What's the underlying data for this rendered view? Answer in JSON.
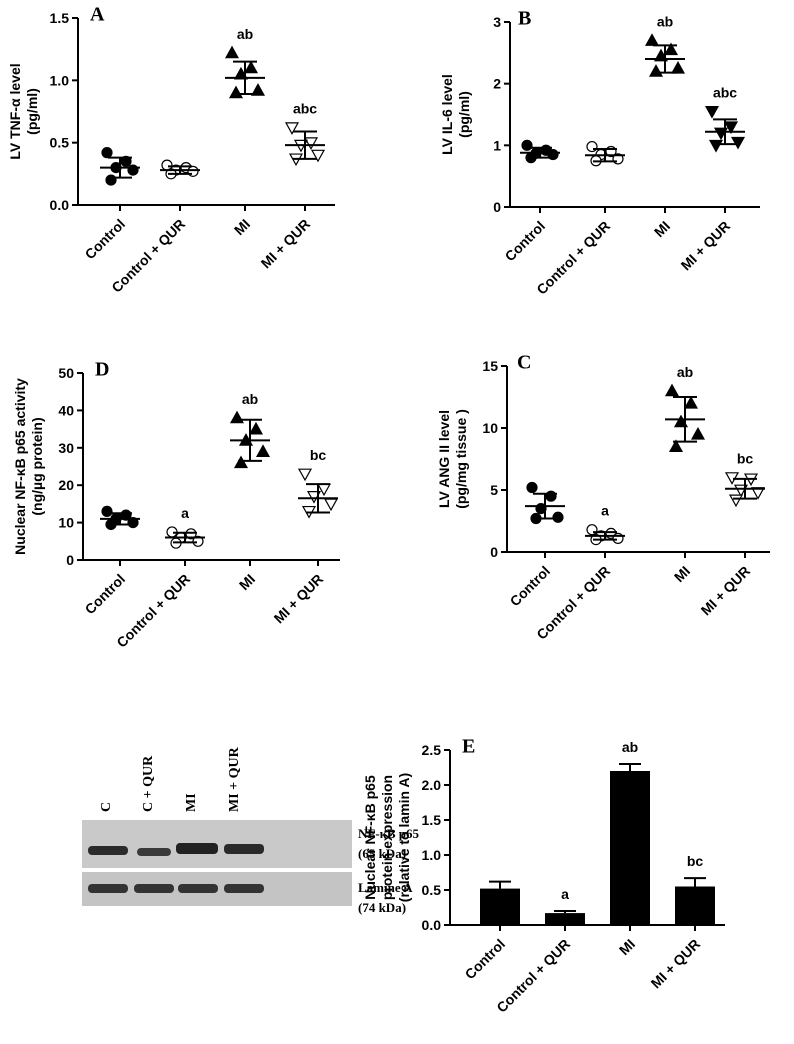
{
  "chart_data": [
    {
      "type": "dot",
      "panel": "A",
      "ylabel": [
        "LV TNF-α level",
        "(pg/ml)"
      ],
      "categories": [
        "Control",
        "Control + QUR",
        "MI",
        "MI + QUR"
      ],
      "points": [
        [
          0.42,
          0.35,
          0.3,
          0.28,
          0.2
        ],
        [
          0.32,
          0.3,
          0.28,
          0.27,
          0.25
        ],
        [
          1.22,
          1.1,
          1.05,
          0.92,
          0.9
        ],
        [
          0.62,
          0.5,
          0.48,
          0.4,
          0.37
        ]
      ],
      "means": [
        0.3,
        0.28,
        1.02,
        0.48
      ],
      "errors": [
        0.08,
        0.03,
        0.13,
        0.11
      ],
      "markers": [
        "circle-filled",
        "circle-open",
        "triangle-up-filled",
        "triangle-down-open"
      ],
      "annotations": [
        null,
        null,
        "ab",
        "abc"
      ],
      "ylim": [
        0,
        1.5
      ],
      "yticks": [
        {
          "value": 0,
          "label": "0.0"
        },
        0.5,
        {
          "value": 1,
          "label": "1.0"
        },
        1.5
      ]
    },
    {
      "type": "dot",
      "panel": "B",
      "ylabel": [
        "LV IL-6 level",
        "(pg/ml)"
      ],
      "categories": [
        "Control",
        "Control + QUR",
        "MI",
        "MI + QUR"
      ],
      "points": [
        [
          1.0,
          0.92,
          0.87,
          0.85,
          0.8
        ],
        [
          0.98,
          0.9,
          0.85,
          0.78,
          0.75
        ],
        [
          2.7,
          2.55,
          2.45,
          2.25,
          2.2
        ],
        [
          1.55,
          1.3,
          1.2,
          1.05,
          1.0
        ]
      ],
      "means": [
        0.88,
        0.84,
        2.4,
        1.22
      ],
      "errors": [
        0.08,
        0.1,
        0.22,
        0.2
      ],
      "markers": [
        "circle-filled",
        "circle-open",
        "triangle-up-filled",
        "triangle-down-filled"
      ],
      "annotations": [
        null,
        null,
        "ab",
        "abc"
      ],
      "ylim": [
        0,
        3
      ],
      "yticks": [
        0,
        1,
        2,
        3
      ]
    },
    {
      "type": "dot",
      "panel": "D",
      "ylabel": [
        "Nuclear NF-κB p65 activity",
        "(ng/µg protein)"
      ],
      "categories": [
        "Control",
        "Control + QUR",
        "MI",
        "MI + QUR"
      ],
      "points": [
        [
          13,
          12,
          11,
          10,
          9.5
        ],
        [
          7.5,
          7,
          6,
          5,
          4.5
        ],
        [
          38,
          35,
          32,
          29,
          26
        ],
        [
          23,
          19,
          17,
          15,
          13
        ]
      ],
      "means": [
        11,
        6,
        32,
        16.5
      ],
      "errors": [
        1.5,
        1.3,
        5.5,
        3.8
      ],
      "markers": [
        "circle-filled",
        "circle-open",
        "triangle-up-filled",
        "triangle-down-open"
      ],
      "annotations": [
        null,
        "a",
        "ab",
        "bc"
      ],
      "ylim": [
        0,
        50
      ],
      "yticks": [
        0,
        10,
        20,
        30,
        40,
        50
      ]
    },
    {
      "type": "dot",
      "panel": "C",
      "ylabel": [
        "LV ANG II level",
        "(pg/mg tissue )"
      ],
      "categories": [
        "Control",
        "Control + QUR",
        "MI",
        "MI + QUR"
      ],
      "points": [
        [
          5.2,
          4.5,
          3.5,
          2.8,
          2.7
        ],
        [
          1.8,
          1.5,
          1.3,
          1.1,
          1.0
        ],
        [
          13,
          12,
          10.5,
          9.5,
          8.5
        ],
        [
          6,
          5.9,
          5,
          4.8,
          4.2
        ]
      ],
      "means": [
        3.7,
        1.3,
        10.7,
        5.1
      ],
      "errors": [
        1.0,
        0.3,
        1.8,
        0.8
      ],
      "markers": [
        "circle-filled",
        "circle-open",
        "triangle-up-filled",
        "triangle-down-open"
      ],
      "annotations": [
        null,
        "a",
        "ab",
        "bc"
      ],
      "ylim": [
        0,
        15
      ],
      "yticks": [
        0,
        5,
        10,
        15
      ]
    },
    {
      "type": "bar",
      "panel": "E",
      "ylabel": [
        "Nuclear NF-κB p65",
        "protein expression",
        "(relative to lamin A)"
      ],
      "categories": [
        "Control",
        "Control + QUR",
        "MI",
        "MI + QUR"
      ],
      "values": [
        0.52,
        0.17,
        2.2,
        0.55
      ],
      "errors": [
        0.1,
        0.03,
        0.1,
        0.12
      ],
      "color": "#000000",
      "annotations": [
        null,
        "a",
        "ab",
        "bc"
      ],
      "ylim": [
        0,
        2.5
      ],
      "yticks": [
        {
          "value": 0,
          "label": "0.0"
        },
        0.5,
        {
          "value": 1,
          "label": "1.0"
        },
        1.5,
        {
          "value": 2,
          "label": "2.0"
        },
        2.5
      ]
    }
  ],
  "blot": {
    "lanes": [
      "C",
      "C + QUR",
      "MI",
      "MI + QUR"
    ],
    "bands": [
      [
        "NF-κB p65",
        "(65 kDa)"
      ],
      [
        "Lamine A",
        "(74 kDa)"
      ]
    ]
  }
}
